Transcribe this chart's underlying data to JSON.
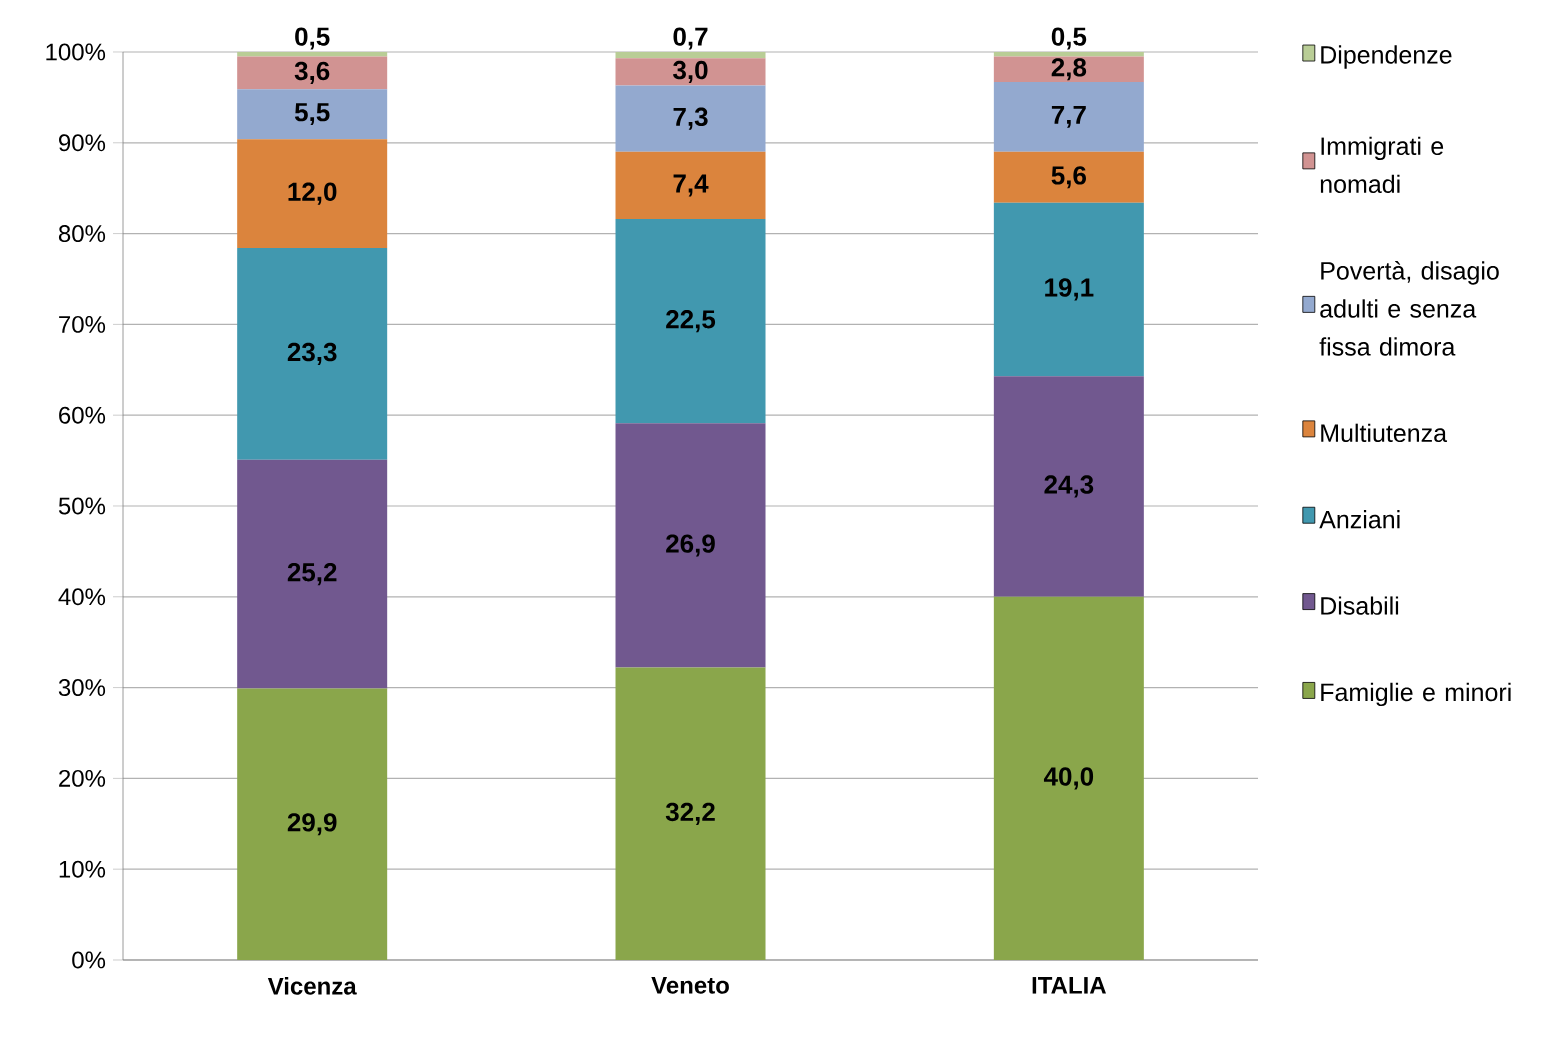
{
  "chart_data": {
    "type": "bar",
    "stacked": true,
    "categories": [
      "Vicenza",
      "Veneto",
      "ITALIA"
    ],
    "ylim": [
      0,
      100
    ],
    "yticks": [
      {
        "value": 0,
        "label": "0%"
      },
      {
        "value": 10,
        "label": "10%"
      },
      {
        "value": 20,
        "label": "20%"
      },
      {
        "value": 30,
        "label": "30%"
      },
      {
        "value": 40,
        "label": "40%"
      },
      {
        "value": 50,
        "label": "50%"
      },
      {
        "value": 60,
        "label": "60%"
      },
      {
        "value": 70,
        "label": "70%"
      },
      {
        "value": 80,
        "label": "80%"
      },
      {
        "value": 90,
        "label": "90%"
      },
      {
        "value": 100,
        "label": "100%"
      }
    ],
    "grid": "y",
    "legend": "right",
    "series": [
      {
        "name": "Famiglie e minori",
        "color": "#8aa64b",
        "values": [
          29.9,
          32.2,
          40.0
        ],
        "value_labels": [
          "29,9",
          "32,2",
          "40,0"
        ]
      },
      {
        "name": "Disabili",
        "color": "#71588f",
        "values": [
          25.2,
          26.9,
          24.3
        ],
        "value_labels": [
          "25,2",
          "26,9",
          "24,3"
        ]
      },
      {
        "name": "Anziani",
        "color": "#4198af",
        "values": [
          23.3,
          22.5,
          19.1
        ],
        "value_labels": [
          "23,3",
          "22,5",
          "19,1"
        ]
      },
      {
        "name": "Multiutenza",
        "color": "#db843d",
        "values": [
          12.0,
          7.4,
          5.6
        ],
        "value_labels": [
          "12,0",
          "7,4",
          "5,6"
        ]
      },
      {
        "name": "Povertà, disagio adulti e senza fissa dimora",
        "color": "#93a9cf",
        "values": [
          5.5,
          7.3,
          7.7
        ],
        "value_labels": [
          "5,5",
          "7,3",
          "7,7"
        ]
      },
      {
        "name": "Immigrati e nomadi",
        "color": "#d19392",
        "values": [
          3.6,
          3.0,
          2.8
        ],
        "value_labels": [
          "3,6",
          "3,0",
          "2,8"
        ]
      },
      {
        "name": "Dipendenze",
        "color": "#b9cd96",
        "values": [
          0.5,
          0.7,
          0.5
        ],
        "value_labels": [
          "0,5",
          "0,7",
          "0,5"
        ]
      }
    ]
  }
}
